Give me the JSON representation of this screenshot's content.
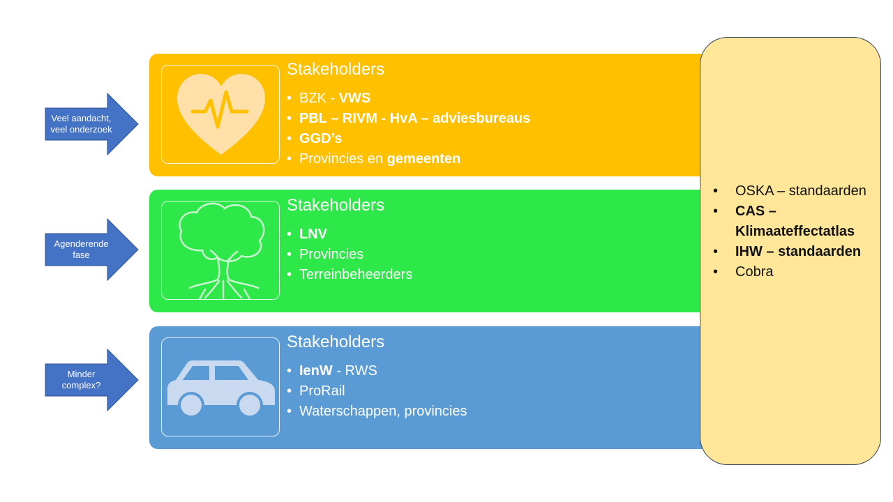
{
  "arrows": [
    {
      "text": "Veel aandacht, veel onderzoek"
    },
    {
      "text": "Agenderende fase"
    },
    {
      "text": "Minder complex?"
    }
  ],
  "bands": [
    {
      "icon": "heart-pulse-icon",
      "color": "#FFC000",
      "title": "Stakeholders",
      "items": [
        {
          "parts": [
            {
              "t": "BZK - ",
              "b": false
            },
            {
              "t": "VWS",
              "b": true
            }
          ]
        },
        {
          "parts": [
            {
              "t": "PBL – RIVM - HvA – adviesbureaus",
              "b": true
            }
          ]
        },
        {
          "parts": [
            {
              "t": "GGD’s",
              "b": true
            }
          ]
        },
        {
          "parts": [
            {
              "t": "Provincies en ",
              "b": false
            },
            {
              "t": "gemeenten",
              "b": true
            }
          ]
        }
      ]
    },
    {
      "icon": "tree-icon",
      "color": "#2EE84A",
      "title": "Stakeholders",
      "items": [
        {
          "parts": [
            {
              "t": "LNV",
              "b": true
            }
          ]
        },
        {
          "parts": [
            {
              "t": "Provincies",
              "b": false
            }
          ]
        },
        {
          "parts": [
            {
              "t": "Terreinbeheerders",
              "b": false
            }
          ]
        }
      ]
    },
    {
      "icon": "car-icon",
      "color": "#5B9BD5",
      "title": "Stakeholders",
      "items": [
        {
          "parts": [
            {
              "t": "IenW",
              "b": true
            },
            {
              "t": " - RWS",
              "b": false
            }
          ]
        },
        {
          "parts": [
            {
              "t": "ProRail",
              "b": false
            }
          ]
        },
        {
          "parts": [
            {
              "t": "Waterschappen, provincies",
              "b": false
            }
          ]
        }
      ]
    }
  ],
  "side_panel": {
    "color": "#FFE699",
    "items": [
      {
        "text": "OSKA – standaarden",
        "b": false
      },
      {
        "text": "CAS – Klimaateffectatlas",
        "b": true
      },
      {
        "text": "IHW – standaarden",
        "b": true
      },
      {
        "text": "Cobra",
        "b": false
      }
    ]
  }
}
